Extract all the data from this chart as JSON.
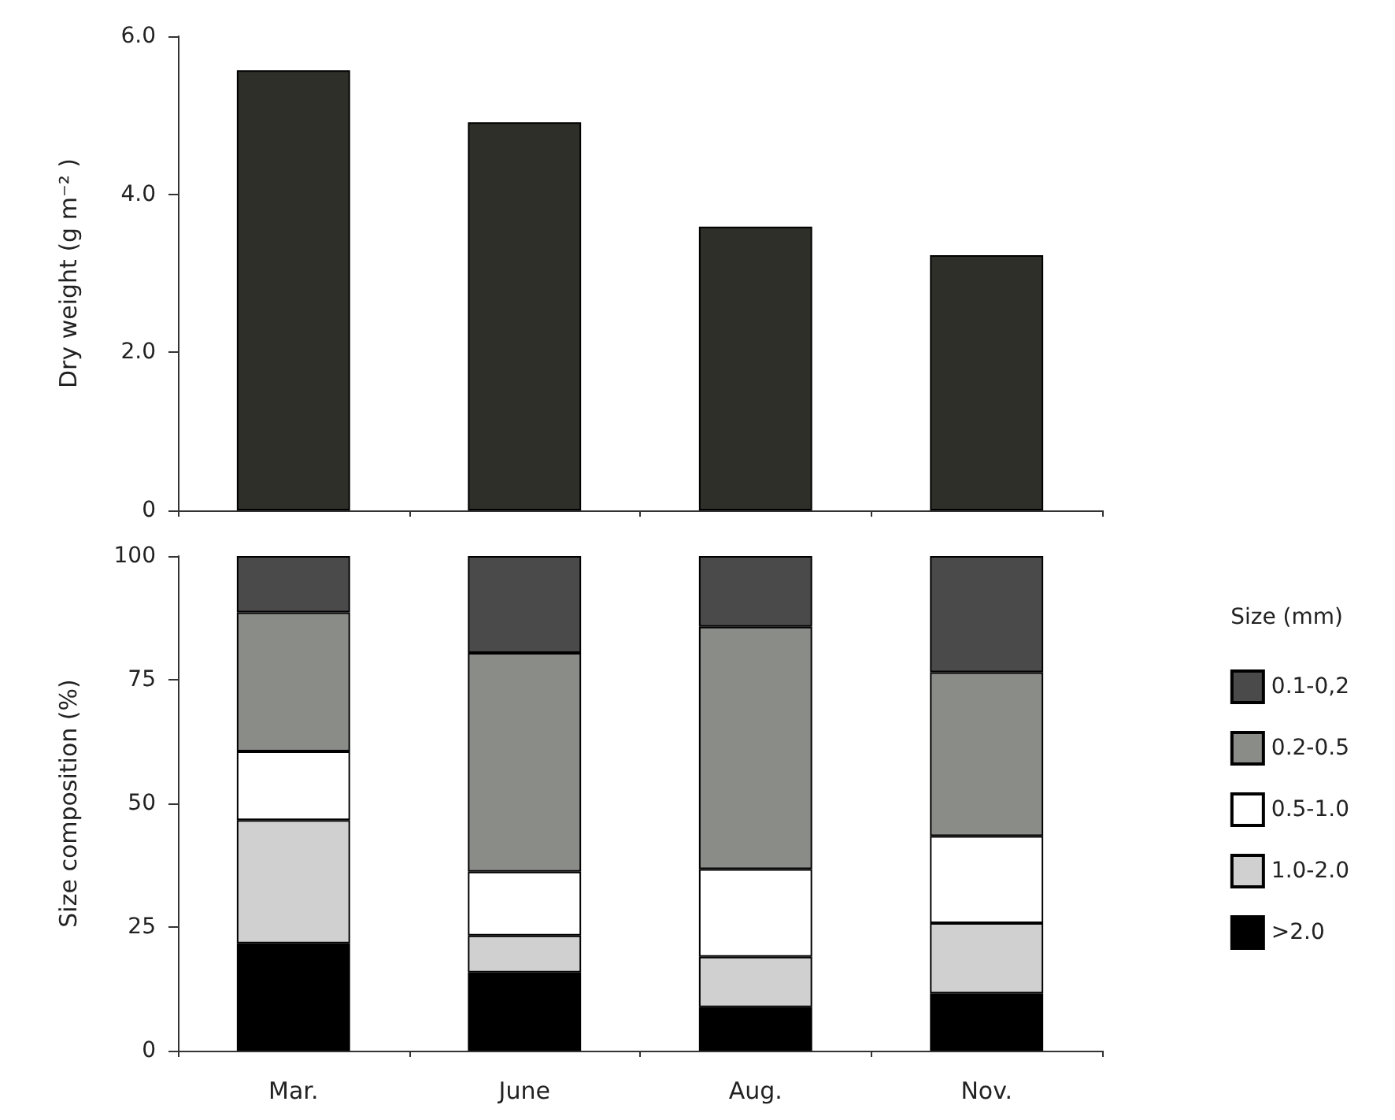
{
  "chart_data": [
    {
      "type": "bar",
      "ylabel": "Dry weight (g m⁻² )",
      "categories": [
        null,
        null,
        null,
        null
      ],
      "values": [
        5.57,
        4.91,
        3.59,
        3.23
      ],
      "color": "#2e2f29",
      "ylim": [
        0,
        6
      ],
      "yticks": [
        0,
        {
          "value": 2,
          "label": "2.0"
        },
        {
          "value": 4,
          "label": "4.0"
        },
        {
          "value": 6,
          "label": "6.0"
        }
      ],
      "grid": false,
      "legend": false,
      "tick_labels": "y"
    },
    {
      "type": "bar",
      "stacked": true,
      "ylabel": "Size composition (%)",
      "legend_title": "Size (mm)",
      "legend": "right",
      "grid": false,
      "categories": [
        "Mar.",
        "June",
        "Aug.",
        "Nov."
      ],
      "ylim": [
        0,
        100
      ],
      "yticks": [
        0,
        25,
        50,
        75,
        100
      ],
      "series": [
        {
          "name": ">2.0",
          "color": "#000000",
          "values": [
            21.7,
            15.8,
            8.8,
            11.6
          ]
        },
        {
          "name": "1.0-2.0",
          "color": "#d0d0d0",
          "values": [
            24.9,
            7.5,
            10.2,
            14.2
          ]
        },
        {
          "name": "0.5-1.0",
          "color": "#ffffff",
          "values": [
            13.9,
            12.9,
            17.7,
            17.6
          ]
        },
        {
          "name": "0.2-0.5",
          "color": "#8a8c88",
          "values": [
            28.1,
            44.2,
            49.0,
            33.1
          ]
        },
        {
          "name": "0.1-0,2",
          "color": "#4a4a4a",
          "values": [
            11.4,
            19.6,
            14.3,
            23.5
          ]
        }
      ]
    }
  ]
}
